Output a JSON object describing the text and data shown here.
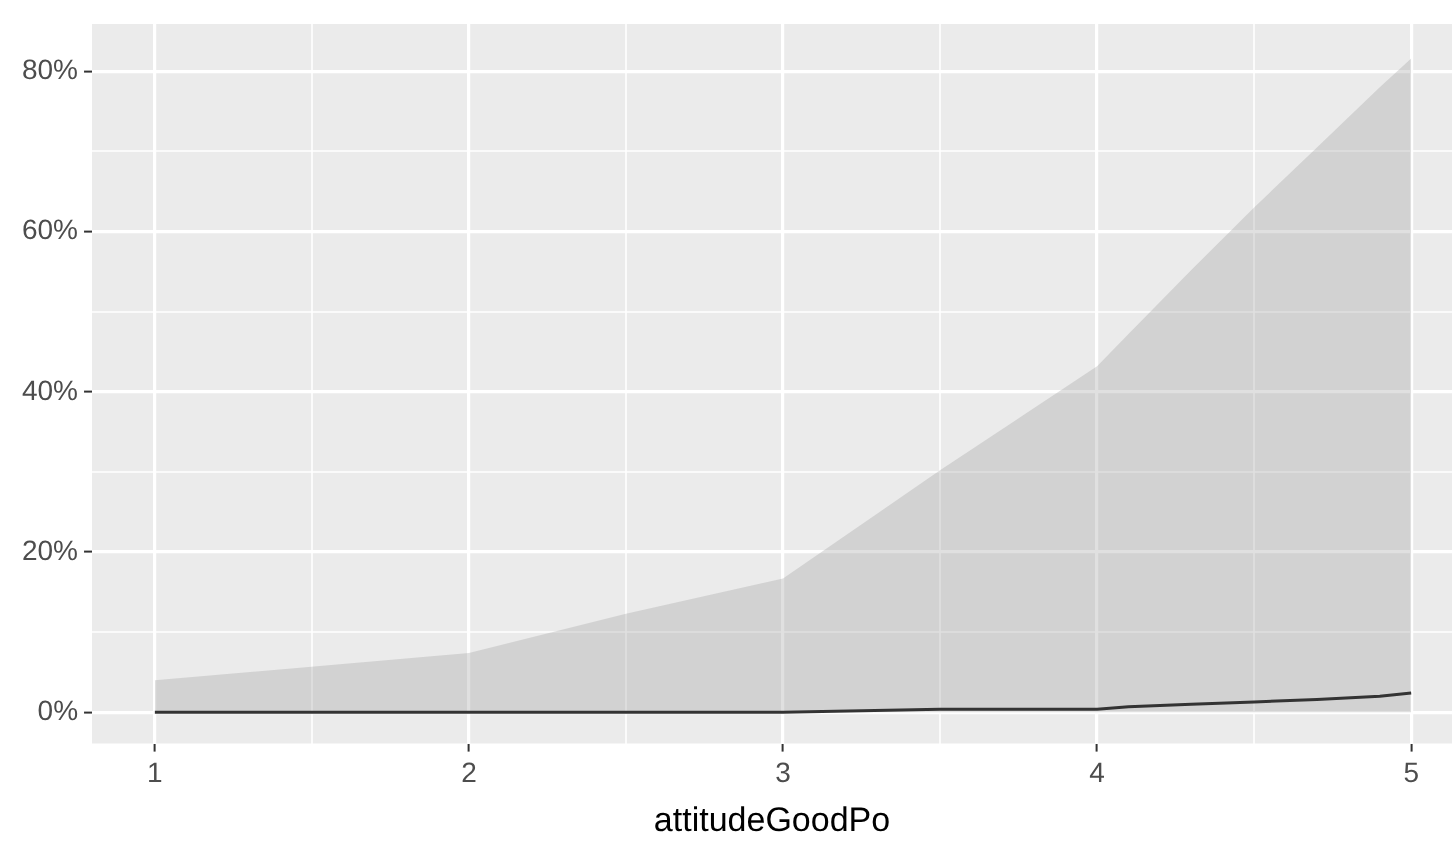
{
  "chart_data": {
    "type": "line",
    "xlabel": "attitudeGoodPo",
    "x": [
      1,
      2,
      2.5,
      3,
      3.5,
      4,
      4.1,
      4.3,
      4.5,
      4.7,
      4.9,
      5
    ],
    "series": [
      {
        "color": "#333333",
        "values": [
          0,
          0,
          0,
          0,
          0.4,
          0.4,
          0.7,
          1.0,
          1.3,
          1.6,
          2.0,
          2.4
        ],
        "lower": [
          0,
          0,
          0,
          0,
          0,
          0,
          0,
          0,
          0,
          0,
          0,
          0
        ],
        "upper": [
          4.0,
          7.4,
          12.3,
          16.7,
          30.2,
          43.2,
          47.2,
          55.2,
          63,
          70.5,
          78,
          81.6
        ]
      }
    ],
    "xlim": [
      0.8,
      5.13
    ],
    "ylim": [
      -3.9,
      85.9
    ],
    "xticks": [
      1,
      {
        "value": 1.5,
        "label": null
      },
      2,
      {
        "value": 2.5,
        "label": null
      },
      3,
      {
        "value": 3.5,
        "label": null
      },
      4,
      {
        "value": 4.5,
        "label": null
      },
      5
    ],
    "yticks": [
      {
        "value": 0,
        "label": "0%"
      },
      {
        "value": 10,
        "label": null
      },
      {
        "value": 20,
        "label": "20%"
      },
      {
        "value": 30,
        "label": null
      },
      {
        "value": 40,
        "label": "40%"
      },
      {
        "value": 50,
        "label": null
      },
      {
        "value": 60,
        "label": "60%"
      },
      {
        "value": 70,
        "label": null
      },
      {
        "value": 80,
        "label": "80%"
      }
    ],
    "grid": true,
    "legend": false,
    "marker": "none",
    "line_style": "solid"
  }
}
